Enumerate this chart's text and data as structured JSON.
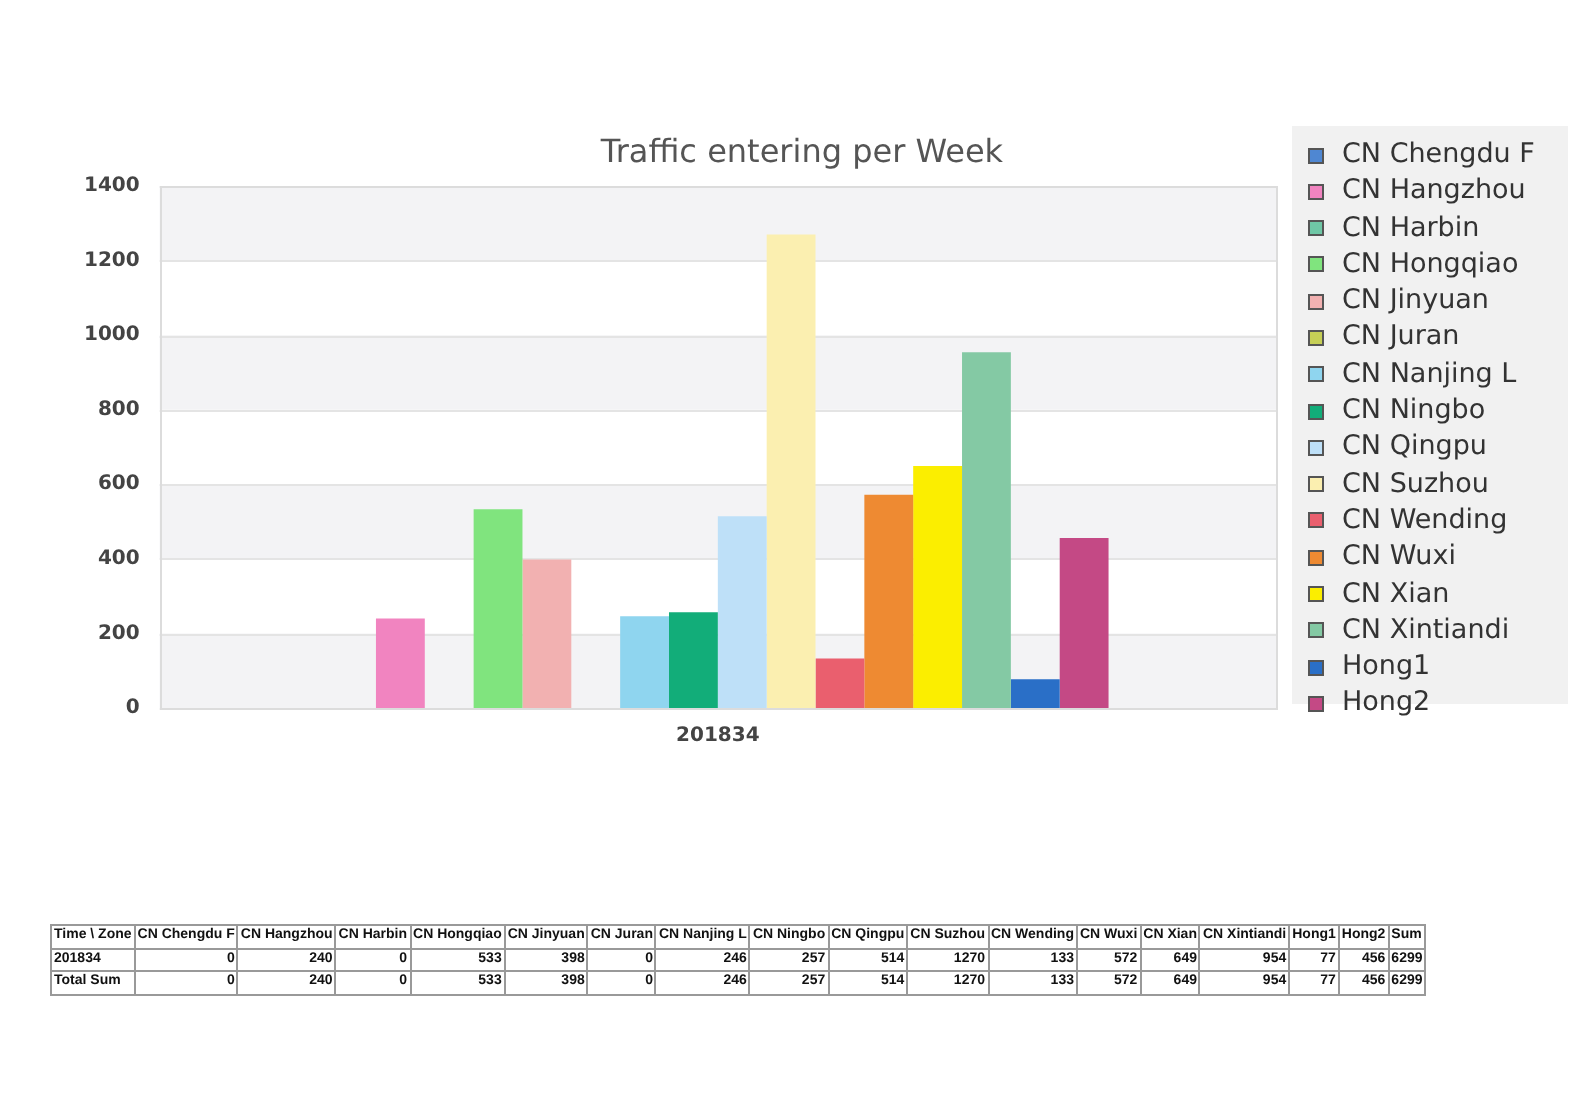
{
  "chart_data": [
    {
      "type": "bar",
      "title": "Traffic entering per Week",
      "categories": [
        "201834"
      ],
      "series": [
        {
          "name": "CN Chengdu F",
          "color": "#4f87d2",
          "values": [
            0
          ]
        },
        {
          "name": "CN Hangzhou",
          "color": "#f184c0",
          "values": [
            240
          ]
        },
        {
          "name": "CN Harbin",
          "color": "#6fc7a6",
          "values": [
            0
          ]
        },
        {
          "name": "CN Hongqiao",
          "color": "#80e47e",
          "values": [
            533
          ]
        },
        {
          "name": "CN Jinyuan",
          "color": "#f2b1b1",
          "values": [
            398
          ]
        },
        {
          "name": "CN Juran",
          "color": "#c6cf56",
          "values": [
            0
          ]
        },
        {
          "name": "CN Nanjing L",
          "color": "#8fd5ef",
          "values": [
            246
          ]
        },
        {
          "name": "CN Ningbo",
          "color": "#12ad79",
          "values": [
            257
          ]
        },
        {
          "name": "CN Qingpu",
          "color": "#bee0f8",
          "values": [
            514
          ]
        },
        {
          "name": "CN Suzhou",
          "color": "#fbefb0",
          "values": [
            1270
          ]
        },
        {
          "name": "CN Wending",
          "color": "#ea5f6e",
          "values": [
            133
          ]
        },
        {
          "name": "CN Wuxi",
          "color": "#ee8a32",
          "values": [
            572
          ]
        },
        {
          "name": "CN Xian",
          "color": "#fbee00",
          "values": [
            649
          ]
        },
        {
          "name": "CN Xintiandi",
          "color": "#84c9a4",
          "values": [
            954
          ]
        },
        {
          "name": "Hong1",
          "color": "#2a6fc7",
          "values": [
            77
          ]
        },
        {
          "name": "Hong2",
          "color": "#c44985",
          "values": [
            456
          ]
        }
      ],
      "ylim": [
        0,
        1400
      ],
      "yticks": [
        0,
        200,
        400,
        600,
        800,
        1000,
        1200,
        1400
      ],
      "grid": "y",
      "legend": "right"
    },
    {
      "type": "other",
      "categories": [
        "Time \\ Zone",
        "CN Chengdu F",
        "CN Hangzhou",
        "CN Harbin",
        "CN Hongqiao",
        "CN Jinyuan",
        "CN Juran",
        "CN Nanjing L",
        "CN Ningbo",
        "CN Qingpu",
        "CN Suzhou",
        "CN Wending",
        "CN Wuxi",
        "CN Xian",
        "CN Xintiandi",
        "Hong1",
        "Hong2",
        "Sum"
      ],
      "annotations": [
        "201834",
        "0",
        "240",
        "0",
        "533",
        "398",
        "0",
        "246",
        "257",
        "514",
        "1270",
        "133",
        "572",
        "649",
        "954",
        "77",
        "456",
        "6299",
        "Total Sum",
        "0",
        "240",
        "0",
        "533",
        "398",
        "0",
        "246",
        "257",
        "514",
        "1270",
        "133",
        "572",
        "649",
        "954",
        "77",
        "456",
        "6299"
      ]
    }
  ]
}
